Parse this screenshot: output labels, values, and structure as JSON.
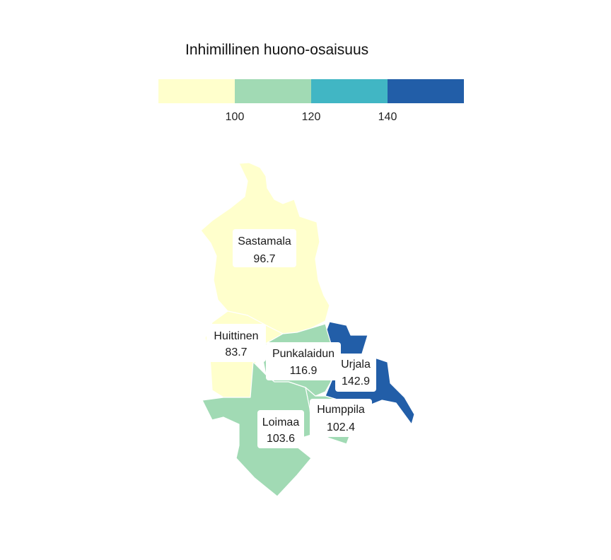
{
  "legend": {
    "title": "Inhimillinen huono-osaisuus",
    "bins": [
      {
        "color": "#ffffcc"
      },
      {
        "color": "#a1dab4"
      },
      {
        "color": "#41b6c4"
      },
      {
        "color": "#225ea8"
      }
    ],
    "ticks": [
      "100",
      "120",
      "140"
    ]
  },
  "regions": [
    {
      "name": "Sastamala",
      "value": "96.7",
      "color": "#ffffcc"
    },
    {
      "name": "Huittinen",
      "value": "83.7",
      "color": "#ffffcc"
    },
    {
      "name": "Punkalaidun",
      "value": "116.9",
      "color": "#a1dab4"
    },
    {
      "name": "Urjala",
      "value": "142.9",
      "color": "#225ea8"
    },
    {
      "name": "Humppila",
      "value": "102.4",
      "color": "#a1dab4"
    },
    {
      "name": "Loimaa",
      "value": "103.6",
      "color": "#a1dab4"
    }
  ]
}
